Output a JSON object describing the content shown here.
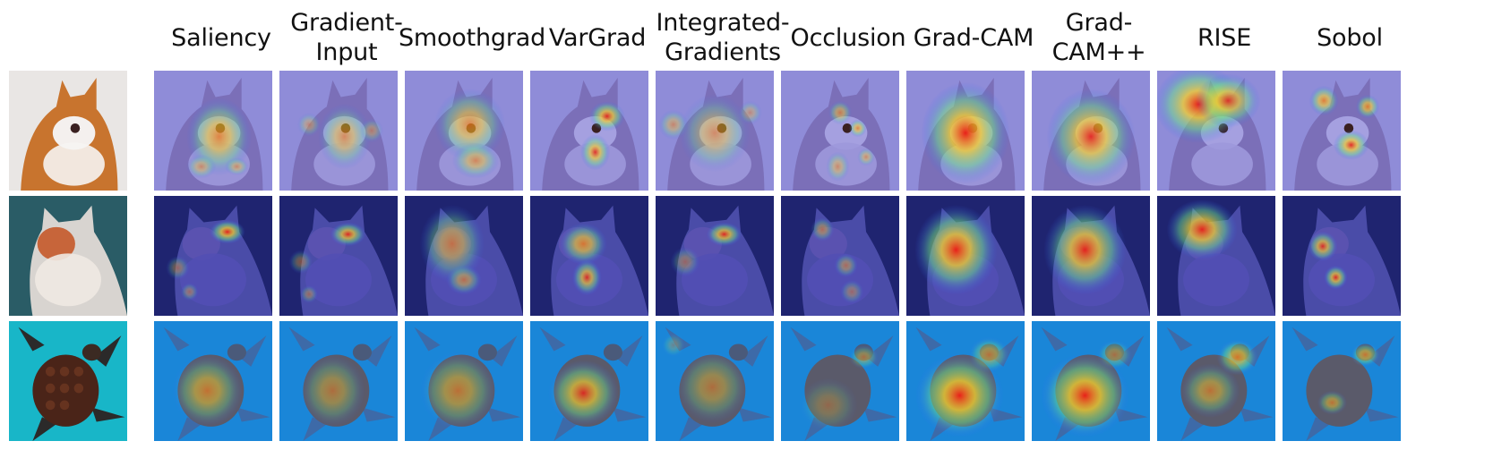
{
  "methods": [
    "Saliency",
    "Gradient-\nInput",
    "Smoothgrad",
    "VarGrad",
    "Integrated-\nGradients",
    "Occlusion",
    "Grad-CAM",
    "Grad-\nCAM++",
    "RISE",
    "Sobol"
  ],
  "subjects": [
    "fox",
    "cat",
    "sea-turtle"
  ]
}
